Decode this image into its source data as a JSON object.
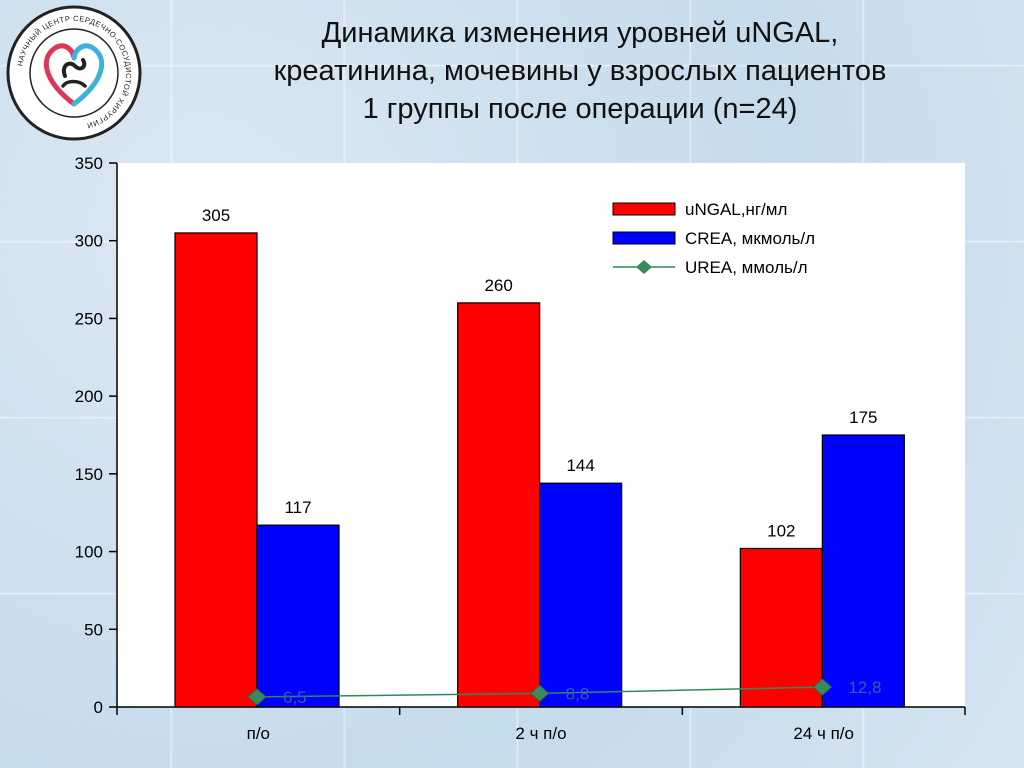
{
  "title_lines": [
    "Динамика изменения уровней  uNGAL,",
    "креатинина, мочевины у взрослых пациентов",
    "1 группы после операции (n=24)"
  ],
  "logo": {
    "icon": "heart-emblem-icon",
    "text": "НАУЧНЫЙ ЦЕНТР СЕРДЕЧНО-СОСУДИСТОЙ ХИРУРГИИ"
  },
  "colors": {
    "ungal": "#ff0000",
    "crea": "#0000ff",
    "urea": "#2e8b57",
    "urea_marker": "#3a8a5e",
    "urea_label": "#3a5f9a",
    "plot_bg": "#ffffff"
  },
  "chart_data": {
    "type": "bar",
    "categories": [
      "п/о",
      "2 ч п/о",
      "24 ч п/о"
    ],
    "series": [
      {
        "name": "uNGAL,нг/мл",
        "kind": "bar",
        "values": [
          305,
          260,
          102
        ],
        "labels": [
          "305",
          "260",
          "102"
        ]
      },
      {
        "name": "CREA, мкмоль/л",
        "kind": "bar",
        "values": [
          117,
          144,
          175
        ],
        "labels": [
          "117",
          "144",
          "175"
        ]
      },
      {
        "name": "UREA, ммоль/л",
        "kind": "line",
        "values": [
          6.5,
          8.8,
          12.8
        ],
        "labels": [
          "6,5",
          "8,8",
          "12,8"
        ]
      }
    ],
    "ylim": [
      0,
      350
    ],
    "yticks": [
      0,
      50,
      100,
      150,
      200,
      250,
      300,
      350
    ],
    "grid": false,
    "legend_position": "top-right"
  }
}
